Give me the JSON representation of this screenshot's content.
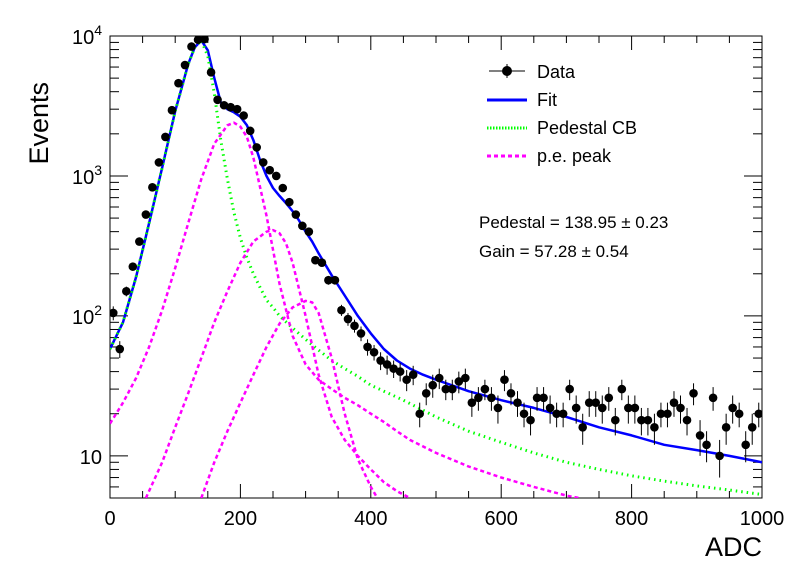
{
  "chart_data": {
    "type": "scatter",
    "title": "",
    "xlabel": "ADC",
    "ylabel": "Events",
    "xlim": [
      0,
      1000
    ],
    "ylim": [
      5,
      10000
    ],
    "yscale": "log",
    "grid": false,
    "legend_position": "top-right",
    "x_ticks": [
      0,
      200,
      400,
      600,
      800,
      1000
    ],
    "x_tick_labels": [
      "0",
      "200",
      "400",
      "600",
      "800",
      "1000"
    ],
    "y_ticks": [
      10,
      100,
      1000,
      10000
    ],
    "y_tick_labels": [
      {
        "base": "10",
        "exp": ""
      },
      {
        "base": "10",
        "exp": "2"
      },
      {
        "base": "10",
        "exp": "3"
      },
      {
        "base": "10",
        "exp": "4"
      }
    ],
    "legend": [
      {
        "label": "Data",
        "style": "marker",
        "color": "#000000"
      },
      {
        "label": "Fit",
        "style": "solid",
        "color": "#0000ff"
      },
      {
        "label": "Pedestal CB",
        "style": "dotted",
        "color": "#00ff00"
      },
      {
        "label": "p.e. peak",
        "style": "dashed",
        "color": "#ff00ff"
      }
    ],
    "annotations": [
      {
        "text": "Pedestal = 138.95 ± 0.23"
      },
      {
        "text": "Gain = 57.28 ± 0.54"
      }
    ],
    "series": [
      {
        "name": "Data",
        "kind": "points",
        "color": "#000000",
        "x": [
          5,
          15,
          25,
          35,
          45,
          55,
          65,
          75,
          85,
          95,
          105,
          115,
          125,
          135,
          145,
          155,
          165,
          175,
          185,
          195,
          205,
          215,
          225,
          235,
          245,
          255,
          265,
          275,
          285,
          295,
          305,
          315,
          325,
          335,
          345,
          355,
          365,
          375,
          385,
          395,
          405,
          415,
          425,
          435,
          445,
          455,
          465,
          475,
          485,
          495,
          505,
          515,
          525,
          535,
          545,
          555,
          565,
          575,
          585,
          595,
          605,
          615,
          625,
          635,
          645,
          655,
          665,
          675,
          685,
          695,
          705,
          715,
          725,
          735,
          745,
          755,
          765,
          775,
          785,
          795,
          805,
          815,
          825,
          835,
          845,
          855,
          865,
          875,
          885,
          895,
          905,
          915,
          925,
          935,
          945,
          955,
          965,
          975,
          985,
          995
        ],
        "y": [
          105,
          58,
          150,
          225,
          340,
          530,
          830,
          1250,
          1900,
          2950,
          4600,
          6200,
          8400,
          9400,
          9500,
          5500,
          3500,
          3200,
          3100,
          3000,
          2700,
          2100,
          1600,
          1250,
          1100,
          1000,
          820,
          650,
          530,
          440,
          400,
          250,
          240,
          180,
          180,
          110,
          95,
          85,
          75,
          60,
          55,
          48,
          45,
          42,
          40,
          35,
          38,
          20,
          28,
          32,
          36,
          30,
          30,
          34,
          36,
          24,
          26,
          30,
          26,
          22,
          35,
          28,
          24,
          20,
          18,
          26,
          26,
          22,
          20,
          20,
          30,
          22,
          16,
          24,
          24,
          22,
          26,
          18,
          30,
          22,
          22,
          18,
          18,
          16,
          20,
          20,
          24,
          22,
          18,
          28,
          14,
          12,
          26,
          10,
          16,
          22,
          20,
          12,
          16,
          20
        ],
        "yerr": [
          12,
          8,
          12,
          15,
          18,
          23,
          29,
          35,
          44,
          54,
          68,
          79,
          92,
          97,
          97,
          74,
          59,
          57,
          56,
          55,
          52,
          46,
          40,
          35,
          33,
          32,
          29,
          25,
          23,
          21,
          20,
          16,
          15,
          13,
          13,
          10,
          10,
          9,
          9,
          8,
          7,
          7,
          7,
          6,
          6,
          6,
          6,
          4,
          5,
          6,
          6,
          5,
          5,
          6,
          6,
          5,
          5,
          5,
          5,
          5,
          6,
          5,
          5,
          4,
          4,
          5,
          5,
          5,
          4,
          4,
          5,
          5,
          4,
          5,
          5,
          5,
          5,
          4,
          5,
          5,
          5,
          4,
          4,
          4,
          4,
          4,
          5,
          5,
          4,
          5,
          4,
          3,
          5,
          3,
          4,
          5,
          4,
          3,
          4,
          4
        ]
      },
      {
        "name": "Fit",
        "kind": "line",
        "color": "#0000ff",
        "x": [
          0,
          20,
          40,
          60,
          80,
          100,
          120,
          130,
          140,
          150,
          160,
          170,
          180,
          190,
          200,
          210,
          220,
          230,
          240,
          250,
          260,
          270,
          280,
          290,
          300,
          310,
          320,
          340,
          360,
          380,
          400,
          420,
          440,
          460,
          480,
          500,
          550,
          600,
          650,
          700,
          750,
          800,
          850,
          900,
          950,
          1000
        ],
        "y": [
          58,
          90,
          190,
          460,
          1150,
          2900,
          6300,
          8300,
          9300,
          7900,
          5000,
          3350,
          3000,
          2850,
          2650,
          2300,
          1800,
          1300,
          1000,
          820,
          720,
          640,
          560,
          480,
          400,
          340,
          280,
          195,
          140,
          100,
          75,
          58,
          48,
          42,
          38,
          35,
          29,
          25,
          22,
          19,
          16,
          14,
          12,
          11,
          10,
          9
        ]
      },
      {
        "name": "Pedestal CB",
        "kind": "line",
        "color": "#00ff00",
        "x": [
          0,
          20,
          40,
          60,
          80,
          100,
          120,
          130,
          140,
          150,
          160,
          170,
          180,
          190,
          200,
          210,
          220,
          230,
          240,
          250,
          260,
          280,
          300,
          320,
          340,
          360,
          380,
          400,
          450,
          500,
          550,
          600,
          650,
          700,
          750,
          800,
          850,
          900,
          950,
          1000
        ],
        "y": [
          58,
          90,
          190,
          460,
          1150,
          2900,
          6300,
          8300,
          9300,
          7200,
          3900,
          1800,
          950,
          550,
          360,
          260,
          200,
          160,
          130,
          115,
          100,
          82,
          68,
          57,
          48,
          42,
          37,
          32,
          25,
          19,
          15,
          12.5,
          10.5,
          9,
          8,
          7.2,
          6.6,
          6.1,
          5.7,
          5.3
        ]
      },
      {
        "name": "p.e. peak 1",
        "kind": "line",
        "color": "#ff00ff",
        "x": [
          0,
          20,
          40,
          60,
          80,
          100,
          120,
          140,
          160,
          180,
          190,
          200,
          210,
          220,
          240,
          260,
          280,
          300,
          320,
          340,
          360,
          380,
          400,
          420,
          440,
          460,
          500,
          550,
          600,
          650,
          700,
          720
        ],
        "y": [
          17,
          24,
          36,
          60,
          110,
          220,
          460,
          950,
          1700,
          2300,
          2400,
          2250,
          1900,
          1350,
          520,
          170,
          72,
          45,
          35,
          30,
          26,
          23,
          20,
          17.5,
          15,
          13,
          10.5,
          8.4,
          7,
          6,
          5.2,
          5
        ]
      },
      {
        "name": "p.e. peak 2",
        "kind": "line",
        "color": "#ff00ff",
        "x": [
          55,
          80,
          100,
          120,
          140,
          160,
          180,
          200,
          220,
          240,
          250,
          260,
          270,
          280,
          300,
          320,
          340,
          360,
          380,
          400,
          420,
          440,
          460
        ],
        "y": [
          5,
          9,
          16,
          28,
          50,
          90,
          150,
          240,
          340,
          400,
          410,
          390,
          330,
          240,
          100,
          38,
          19,
          13,
          10,
          8,
          6.5,
          5.6,
          5
        ]
      },
      {
        "name": "p.e. peak 3",
        "kind": "line",
        "color": "#ff00ff",
        "x": [
          140,
          160,
          180,
          200,
          220,
          240,
          260,
          280,
          300,
          310,
          320,
          340,
          360,
          380,
          400,
          410
        ],
        "y": [
          5,
          9,
          15,
          24,
          38,
          60,
          88,
          115,
          128,
          125,
          105,
          50,
          20,
          9.5,
          6,
          5
        ]
      }
    ]
  }
}
